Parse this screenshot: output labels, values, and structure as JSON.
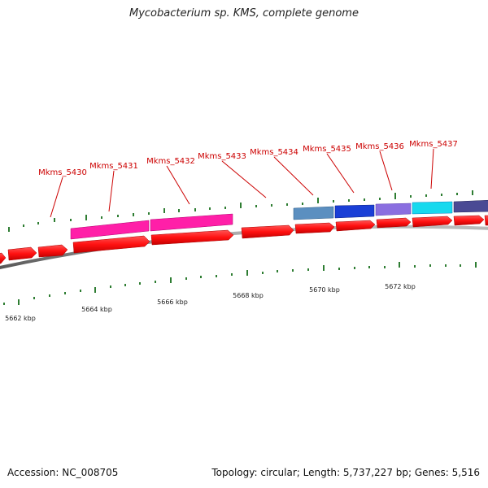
{
  "header": {
    "title": "Mycobacterium sp. KMS, complete genome"
  },
  "footer": {
    "accession": "Accession: NC_008705",
    "topology": "Topology: circular; Length: 5,737,227 bp; Genes: 5,516"
  },
  "colors": {
    "gene_red": "#ff1111",
    "backbone": "#888888",
    "tick_green": "#2e7d32",
    "label_red": "#cc0000",
    "leader_red": "#cc0000"
  },
  "gene_labels": [
    "Mkms_5430",
    "Mkms_5431",
    "Mkms_5432",
    "Mkms_5433",
    "Mkms_5434",
    "Mkms_5435",
    "Mkms_5436",
    "Mkms_5437"
  ],
  "kbp_labels": [
    "5662 kbp",
    "5664 kbp",
    "5666 kbp",
    "5668 kbp",
    "5670 kbp",
    "5672 kbp"
  ],
  "annotation_colors": [
    "#ff1fa8",
    "#ff1fa8",
    "#5b8fc0",
    "#1a3fd6",
    "#8a6ee0",
    "#17d9ee",
    "#4a4a94"
  ]
}
